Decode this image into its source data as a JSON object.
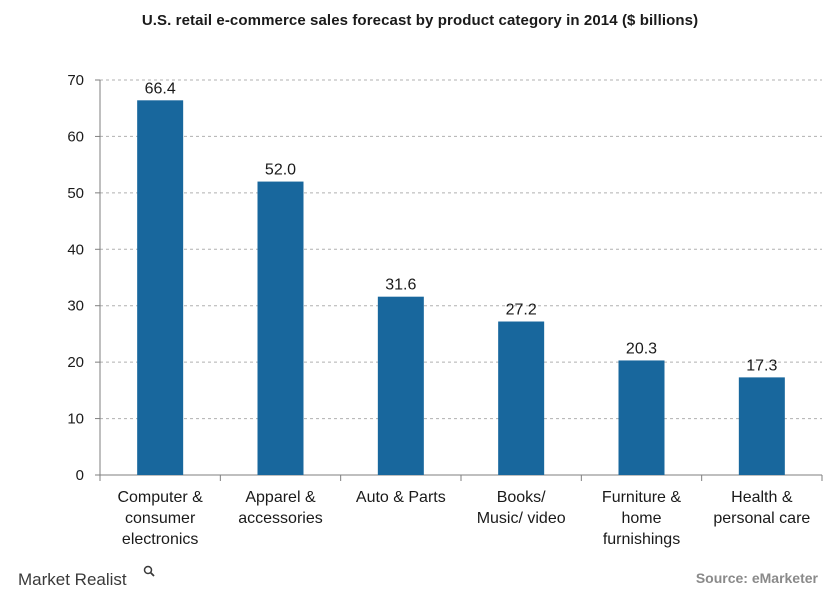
{
  "chart_data": {
    "type": "bar",
    "title": "U.S. retail e-commerce  sales forecast  by product  category  in 2014  ($ billions)",
    "categories": [
      [
        "Computer &",
        "consumer",
        "electronics"
      ],
      [
        "Apparel &",
        "accessories"
      ],
      [
        "Auto & Parts"
      ],
      [
        "Books/",
        "Music/ video"
      ],
      [
        "Furniture &",
        "home",
        "furnishings"
      ],
      [
        "Health &",
        "personal care"
      ]
    ],
    "values": [
      66.4,
      52.0,
      31.6,
      27.2,
      20.3,
      17.3
    ],
    "value_labels": [
      "66.4",
      "52.0",
      "31.6",
      "27.2",
      "20.3",
      "17.3"
    ],
    "ylim": [
      0,
      70
    ],
    "yticks": [
      "0",
      "10",
      "20",
      "30",
      "40",
      "50",
      "60",
      "70"
    ],
    "xlabel": "",
    "ylabel": "",
    "grid": true,
    "bar_color": "#18679d"
  },
  "footer": {
    "brand": "Market Realist",
    "brand_icon": "magnifier-icon",
    "source": "Source: eMarketer"
  }
}
